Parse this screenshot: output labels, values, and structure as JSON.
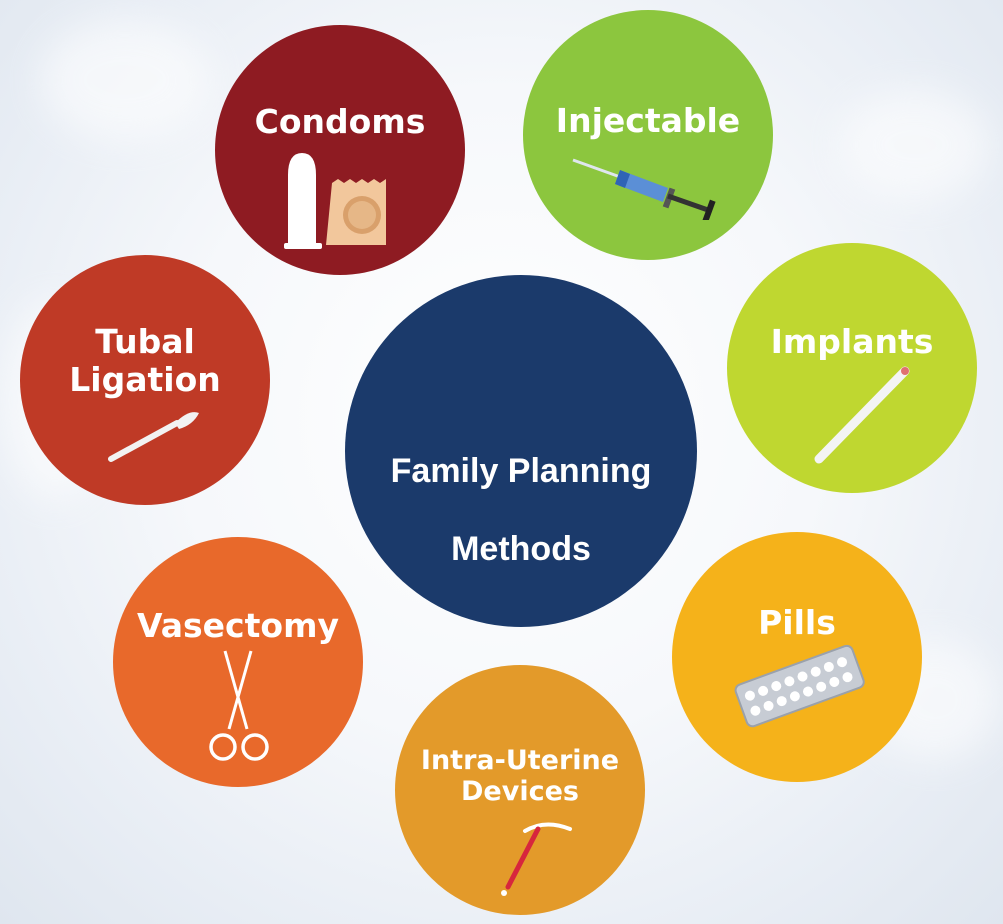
{
  "center": {
    "line1": "Family Planning",
    "line2": "Methods"
  },
  "methods": [
    {
      "id": "condoms",
      "label": "Condoms",
      "color": "#8e1b22",
      "icon": "condom-icon"
    },
    {
      "id": "injectable",
      "label": "Injectable",
      "color": "#8cc63e",
      "icon": "syringe-icon"
    },
    {
      "id": "implants",
      "label": "Implants",
      "color": "#bfd730",
      "icon": "implant-rod-icon"
    },
    {
      "id": "pills",
      "label": "Pills",
      "color": "#f5b21a",
      "icon": "pill-pack-icon"
    },
    {
      "id": "iud",
      "label": "Intra-Uterine\nDevices",
      "color": "#e39a2a",
      "icon": "iud-icon"
    },
    {
      "id": "vasectomy",
      "label": "Vasectomy",
      "color": "#e8692b",
      "icon": "scissors-icon"
    },
    {
      "id": "tubal",
      "label": "Tubal\nLigation",
      "color": "#bf3a26",
      "icon": "scalpel-icon"
    }
  ],
  "colors": {
    "center": "#1b3a6b"
  }
}
